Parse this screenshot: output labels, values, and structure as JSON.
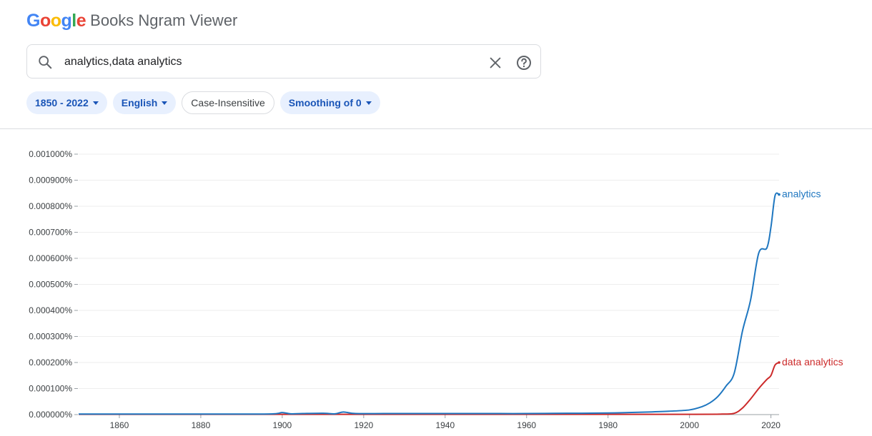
{
  "header": {
    "logo_word": "Google",
    "product_title": "Books Ngram Viewer"
  },
  "search": {
    "query": "analytics,data analytics",
    "search_icon": "search-icon",
    "clear_icon": "close-icon",
    "help_icon": "help-circle-icon"
  },
  "filters": {
    "year_range": "1850 - 2022",
    "corpus": "English",
    "case": "Case-Insensitive",
    "smoothing": "Smoothing of 0"
  },
  "colors": {
    "analytics": "#1f77c0",
    "data_analytics": "#cc2a2a"
  },
  "chart_data": {
    "type": "line",
    "xlim": [
      1850,
      2022
    ],
    "ylim": [
      0,
      0.001
    ],
    "x_ticks": [
      "1860",
      "1880",
      "1900",
      "1920",
      "1940",
      "1960",
      "1980",
      "2000",
      "2020"
    ],
    "y_ticks": [
      "0.000000%",
      "0.000100%",
      "0.000200%",
      "0.000300%",
      "0.000400%",
      "0.000500%",
      "0.000600%",
      "0.000700%",
      "0.000800%",
      "0.000900%",
      "0.001000%"
    ],
    "grid": true,
    "legend": "end-of-line labels",
    "series": [
      {
        "name": "analytics",
        "points": [
          [
            1850,
            2e-06
          ],
          [
            1860,
            2e-06
          ],
          [
            1870,
            2e-06
          ],
          [
            1880,
            2e-06
          ],
          [
            1890,
            2e-06
          ],
          [
            1898,
            3e-06
          ],
          [
            1900,
            8e-06
          ],
          [
            1902,
            3e-06
          ],
          [
            1905,
            4e-06
          ],
          [
            1910,
            5e-06
          ],
          [
            1913,
            3e-06
          ],
          [
            1915,
            1e-05
          ],
          [
            1918,
            4e-06
          ],
          [
            1925,
            4e-06
          ],
          [
            1930,
            4e-06
          ],
          [
            1940,
            4e-06
          ],
          [
            1950,
            4e-06
          ],
          [
            1960,
            4e-06
          ],
          [
            1970,
            5e-06
          ],
          [
            1980,
            6e-06
          ],
          [
            1985,
            8e-06
          ],
          [
            1990,
            1e-05
          ],
          [
            1995,
            1.3e-05
          ],
          [
            2000,
            1.8e-05
          ],
          [
            2003,
            3e-05
          ],
          [
            2005,
            4.5e-05
          ],
          [
            2007,
            7e-05
          ],
          [
            2009,
            0.00011
          ],
          [
            2011,
            0.00016
          ],
          [
            2013,
            0.00032
          ],
          [
            2015,
            0.00044
          ],
          [
            2017,
            0.00062
          ],
          [
            2019,
            0.00064
          ],
          [
            2020,
            0.00072
          ],
          [
            2021,
            0.00084
          ],
          [
            2022,
            0.000845
          ]
        ]
      },
      {
        "name": "data analytics",
        "points": [
          [
            1850,
            1e-06
          ],
          [
            1900,
            1e-06
          ],
          [
            1950,
            1e-06
          ],
          [
            2000,
            1e-06
          ],
          [
            2008,
            2e-06
          ],
          [
            2011,
            5e-06
          ],
          [
            2013,
            2.5e-05
          ],
          [
            2015,
            6e-05
          ],
          [
            2017,
            0.0001
          ],
          [
            2019,
            0.000135
          ],
          [
            2020,
            0.00015
          ],
          [
            2021,
            0.00019
          ],
          [
            2022,
            0.0002
          ]
        ]
      }
    ]
  }
}
